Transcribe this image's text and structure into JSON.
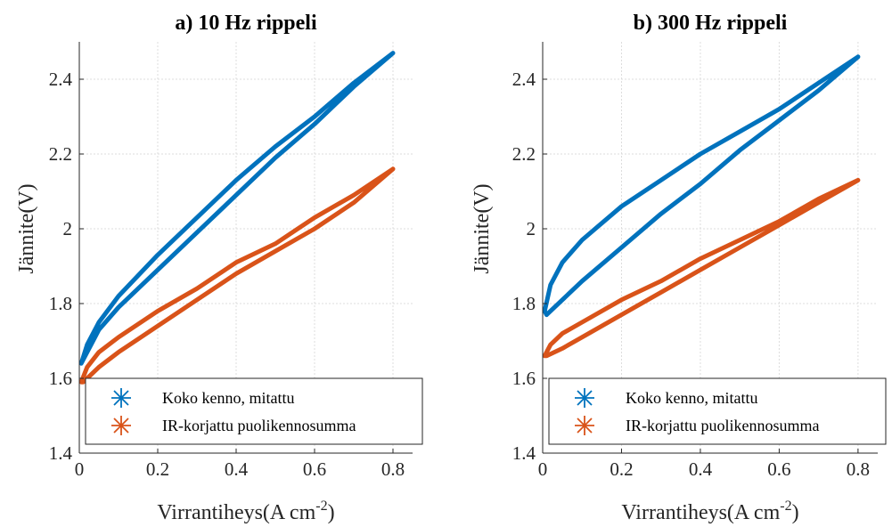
{
  "colors": {
    "measured": "#0072BD",
    "corrected": "#D95319",
    "axis": "#262626",
    "grid": "#dcdcdc"
  },
  "legend": {
    "placement": "bottom",
    "icon": "asterisk-icon",
    "entries": [
      "Koko kenno, mitattu",
      "IR-korjattu puolikennosumma"
    ]
  },
  "chart_data": [
    {
      "type": "line",
      "title": "a) 10 Hz rippeli",
      "xlabel": "Virrantiheys(A cm",
      "xlabel_sup": "-2",
      "xlabel_close": ")",
      "ylabel": "Jännite(V)",
      "xlim": [
        0,
        0.85
      ],
      "ylim": [
        1.4,
        2.5
      ],
      "xticks": [
        0,
        0.2,
        0.4,
        0.6,
        0.8
      ],
      "xtick_labels": [
        "0",
        "0.2",
        "0.4",
        "0.6",
        "0.8"
      ],
      "yticks": [
        1.4,
        1.6,
        1.8,
        2.0,
        2.2,
        2.4
      ],
      "ytick_labels": [
        "1.4",
        "1.6",
        "1.8",
        "2",
        "2.2",
        "2.4"
      ],
      "grid": true,
      "series": [
        {
          "name": "Koko kenno, mitattu",
          "x": [
            0.8,
            0.7,
            0.6,
            0.5,
            0.4,
            0.3,
            0.2,
            0.1,
            0.05,
            0.02,
            0.005,
            0.01,
            0.05,
            0.1,
            0.2,
            0.3,
            0.4,
            0.5,
            0.6,
            0.7,
            0.8
          ],
          "y": [
            2.47,
            2.39,
            2.3,
            2.22,
            2.13,
            2.03,
            1.93,
            1.82,
            1.75,
            1.69,
            1.64,
            1.65,
            1.73,
            1.79,
            1.89,
            1.99,
            2.09,
            2.19,
            2.28,
            2.38,
            2.47
          ]
        },
        {
          "name": "IR-korjattu puolikennosumma",
          "x": [
            0.8,
            0.7,
            0.6,
            0.5,
            0.4,
            0.3,
            0.2,
            0.1,
            0.05,
            0.02,
            0.005,
            0.01,
            0.05,
            0.1,
            0.2,
            0.3,
            0.4,
            0.5,
            0.6,
            0.7,
            0.8
          ],
          "y": [
            2.16,
            2.09,
            2.03,
            1.96,
            1.91,
            1.84,
            1.78,
            1.71,
            1.67,
            1.63,
            1.59,
            1.59,
            1.63,
            1.67,
            1.74,
            1.81,
            1.88,
            1.94,
            2.0,
            2.07,
            2.16
          ]
        }
      ]
    },
    {
      "type": "line",
      "title": "b) 300 Hz rippeli",
      "xlabel": "Virrantiheys(A cm",
      "xlabel_sup": "-2",
      "xlabel_close": ")",
      "ylabel": "Jännite(V)",
      "xlim": [
        0,
        0.85
      ],
      "ylim": [
        1.4,
        2.5
      ],
      "xticks": [
        0,
        0.2,
        0.4,
        0.6,
        0.8
      ],
      "xtick_labels": [
        "0",
        "0.2",
        "0.4",
        "0.6",
        "0.8"
      ],
      "yticks": [
        1.4,
        1.6,
        1.8,
        2.0,
        2.2,
        2.4
      ],
      "ytick_labels": [
        "1.4",
        "1.6",
        "1.8",
        "2",
        "2.2",
        "2.4"
      ],
      "grid": true,
      "series": [
        {
          "name": "Koko kenno, mitattu",
          "x": [
            0.8,
            0.7,
            0.6,
            0.5,
            0.4,
            0.3,
            0.2,
            0.1,
            0.05,
            0.02,
            0.005,
            0.01,
            0.05,
            0.1,
            0.2,
            0.3,
            0.4,
            0.5,
            0.6,
            0.7,
            0.8
          ],
          "y": [
            2.46,
            2.39,
            2.32,
            2.26,
            2.2,
            2.13,
            2.06,
            1.97,
            1.91,
            1.85,
            1.78,
            1.77,
            1.81,
            1.86,
            1.95,
            2.04,
            2.12,
            2.21,
            2.29,
            2.37,
            2.46
          ]
        },
        {
          "name": "IR-korjattu puolikennosumma",
          "x": [
            0.8,
            0.7,
            0.6,
            0.5,
            0.4,
            0.3,
            0.2,
            0.1,
            0.05,
            0.02,
            0.005,
            0.01,
            0.05,
            0.1,
            0.2,
            0.3,
            0.4,
            0.5,
            0.6,
            0.7,
            0.8
          ],
          "y": [
            2.13,
            2.08,
            2.02,
            1.97,
            1.92,
            1.86,
            1.81,
            1.75,
            1.72,
            1.69,
            1.66,
            1.66,
            1.68,
            1.71,
            1.77,
            1.83,
            1.89,
            1.95,
            2.01,
            2.07,
            2.13
          ]
        }
      ]
    }
  ]
}
